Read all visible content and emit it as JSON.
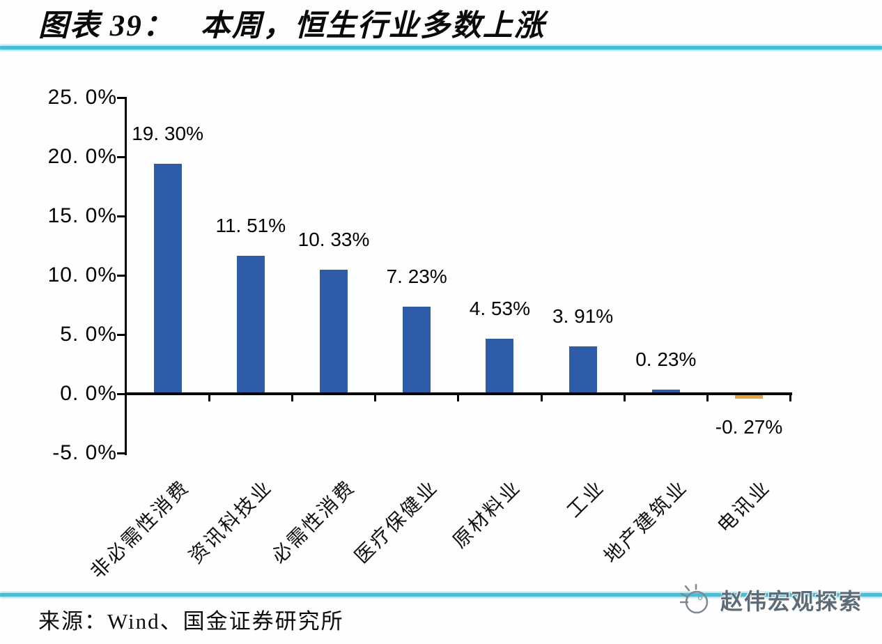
{
  "header": {
    "figure_label": "图表 39：",
    "title": "本周，恒生行业多数上涨"
  },
  "chart_data": {
    "type": "bar",
    "title": "本周，恒生行业多数上涨",
    "xlabel": "",
    "ylabel": "",
    "grid": "off",
    "legend": "none",
    "ylim": [
      -5,
      25
    ],
    "categories": [
      "非必需性消费",
      "资讯科技业",
      "必需性消费",
      "医疗保健业",
      "原材料业",
      "工业",
      "地产建筑业",
      "电讯业"
    ],
    "values": [
      19.3,
      11.51,
      10.33,
      7.23,
      4.53,
      3.91,
      0.23,
      -0.27
    ],
    "value_labels": [
      "19. 30%",
      "11. 51%",
      "10. 33%",
      "7. 23%",
      "4. 53%",
      "3. 91%",
      "0. 23%",
      "-0. 27%"
    ],
    "y_tick_values": [
      25,
      20,
      15,
      10,
      5,
      0,
      -5
    ],
    "y_tick_labels": [
      "25. 0%",
      "20. 0%",
      "15. 0%",
      "10. 0%",
      "5. 0%",
      "0. 0%",
      "-5. 0%"
    ],
    "bar_color_positive": "#2E5CA8",
    "bar_color_negative": "#E2A43C",
    "axis_color": "#000000"
  },
  "footer": {
    "source": "来源：Wind、国金证券研究所",
    "watermark": "赵伟宏观探索"
  },
  "accent": {
    "divider_color": "#45BED8",
    "logo_stroke": "#7d8893"
  }
}
